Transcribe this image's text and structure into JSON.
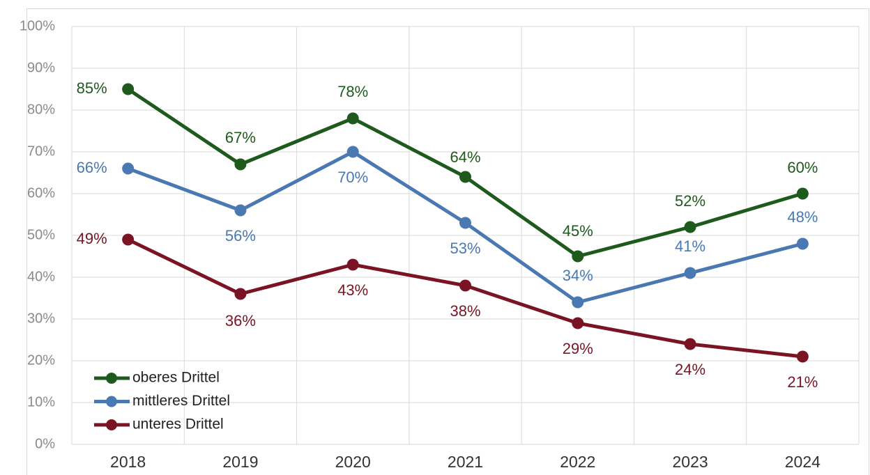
{
  "chart_data": {
    "type": "line",
    "categories": [
      "2018",
      "2019",
      "2020",
      "2021",
      "2022",
      "2023",
      "2024"
    ],
    "series": [
      {
        "name": "oberes Drittel",
        "color": "#1e5a1c",
        "values": [
          85,
          67,
          78,
          64,
          45,
          52,
          60
        ],
        "value_labels": [
          "85%",
          "67%",
          "78%",
          "64%",
          "45%",
          "52%",
          "60%"
        ]
      },
      {
        "name": "mittleres Drittel",
        "color": "#4a78b2",
        "values": [
          66,
          56,
          70,
          53,
          34,
          41,
          48
        ],
        "value_labels": [
          "66%",
          "56%",
          "70%",
          "53%",
          "34%",
          "41%",
          "48%"
        ]
      },
      {
        "name": "unteres Drittel",
        "color": "#7a1424",
        "values": [
          49,
          36,
          43,
          38,
          29,
          24,
          21
        ],
        "value_labels": [
          "49%",
          "36%",
          "43%",
          "38%",
          "29%",
          "24%",
          "21%"
        ]
      }
    ],
    "ylim": [
      0,
      100
    ],
    "yticks": [
      {
        "value": 0,
        "label": "0%"
      },
      {
        "value": 10,
        "label": "10%"
      },
      {
        "value": 20,
        "label": "20%"
      },
      {
        "value": 30,
        "label": "30%"
      },
      {
        "value": 40,
        "label": "40%"
      },
      {
        "value": 50,
        "label": "50%"
      },
      {
        "value": 60,
        "label": "60%"
      },
      {
        "value": 70,
        "label": "70%"
      },
      {
        "value": 80,
        "label": "80%"
      },
      {
        "value": 90,
        "label": "90%"
      },
      {
        "value": 100,
        "label": "100%"
      }
    ],
    "grid": true,
    "legend": "lower left"
  }
}
